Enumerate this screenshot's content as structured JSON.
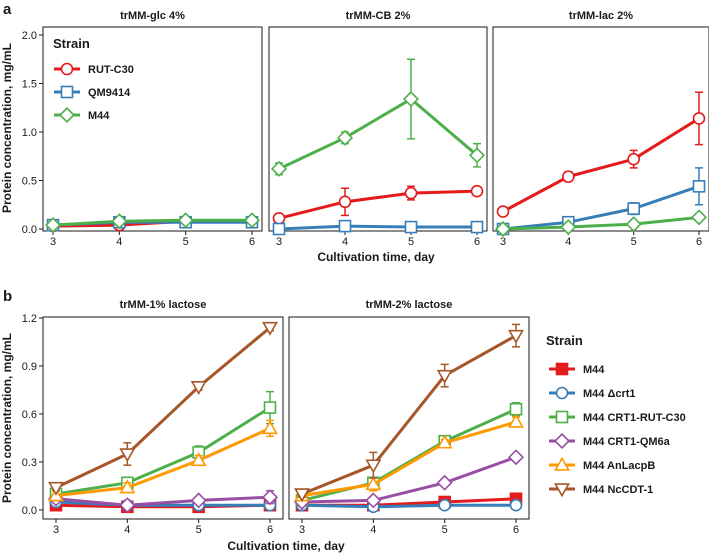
{
  "figure_labels": {
    "a": "a",
    "b": "b"
  },
  "colors": {
    "RUT-C30": "#e41a1c",
    "QM9414": "#377eb8",
    "M44_a": "#4daf4a",
    "M44": "#e41a1c",
    "M44 Δcrt1": "#377eb8",
    "M44 CRT1-RUT-C30": "#4daf4a",
    "M44 CRT1-QM6a": "#984ea3",
    "M44 AnLacpB": "#ff9900",
    "M44 NcCDT-1": "#a65628"
  },
  "chart_data": [
    {
      "id": "a",
      "type": "line",
      "ylabel": "Protein concentration, mg/mL",
      "xlabel": "Cultivation time, day",
      "x": [
        3,
        4,
        5,
        6
      ],
      "xlim": [
        3,
        6
      ],
      "ylim": [
        0,
        2.0
      ],
      "yticks": [
        0.0,
        0.5,
        1.0,
        1.5,
        2.0
      ],
      "ytick_labels": [
        "0.0",
        "0.5",
        "1.0",
        "1.5",
        "2.0"
      ],
      "xtick_labels": [
        "3",
        "4",
        "5",
        "6"
      ],
      "legend": {
        "title": "Strain",
        "placement": "inside-top-left-first-panel",
        "entries": [
          "RUT-C30",
          "QM9414",
          "M44"
        ]
      },
      "panels": [
        {
          "title": "trMM-glc 4%",
          "series": [
            {
              "name": "RUT-C30",
              "values": [
                0.03,
                0.04,
                0.08,
                0.08
              ],
              "errors": [
                0.01,
                0.02,
                0.01,
                0.01
              ]
            },
            {
              "name": "QM9414",
              "values": [
                0.04,
                0.07,
                0.07,
                0.07
              ],
              "errors": [
                0.01,
                0.04,
                0.01,
                0.02
              ]
            },
            {
              "name": "M44",
              "values": [
                0.04,
                0.08,
                0.09,
                0.09
              ],
              "errors": [
                0.01,
                0.02,
                0.01,
                0.01
              ]
            }
          ]
        },
        {
          "title": "trMM-CB 2%",
          "series": [
            {
              "name": "RUT-C30",
              "values": [
                0.11,
                0.28,
                0.37,
                0.39
              ],
              "errors": [
                0.02,
                0.14,
                0.07,
                0.02
              ]
            },
            {
              "name": "QM9414",
              "values": [
                0.0,
                0.03,
                0.02,
                0.02
              ],
              "errors": [
                0.01,
                0.01,
                0.01,
                0.01
              ]
            },
            {
              "name": "M44",
              "values": [
                0.62,
                0.94,
                1.34,
                0.76
              ],
              "errors": [
                0.06,
                0.06,
                0.41,
                0.12
              ]
            }
          ]
        },
        {
          "title": "trMM-lac 2%",
          "series": [
            {
              "name": "RUT-C30",
              "values": [
                0.18,
                0.54,
                0.72,
                1.14
              ],
              "errors": [
                0.03,
                0.05,
                0.09,
                0.27
              ]
            },
            {
              "name": "QM9414",
              "values": [
                0.0,
                0.07,
                0.21,
                0.44
              ],
              "errors": [
                0.01,
                0.02,
                0.06,
                0.19
              ]
            },
            {
              "name": "M44",
              "values": [
                0.0,
                0.02,
                0.05,
                0.12
              ],
              "errors": [
                0.01,
                0.01,
                0.02,
                0.03
              ]
            }
          ]
        }
      ]
    },
    {
      "id": "b",
      "type": "line",
      "ylabel": "Protein concentration, mg/mL",
      "xlabel": "Cultivation time, day",
      "x": [
        3,
        4,
        5,
        6
      ],
      "xlim": [
        3,
        6
      ],
      "ylim": [
        0,
        1.2
      ],
      "yticks": [
        0.0,
        0.3,
        0.6,
        0.9,
        1.2
      ],
      "ytick_labels": [
        "0.0",
        "0.3",
        "0.6",
        "0.9",
        "1.2"
      ],
      "xtick_labels": [
        "3",
        "4",
        "5",
        "6"
      ],
      "legend": {
        "title": "Strain",
        "placement": "right",
        "entries": [
          "M44",
          "M44 Δcrt1",
          "M44 CRT1-RUT-C30",
          "M44 CRT1-QM6a",
          "M44 AnLacpB",
          "M44 NcCDT-1"
        ]
      },
      "panels": [
        {
          "title": "trMM-1% lactose",
          "series": [
            {
              "name": "M44",
              "values": [
                0.03,
                0.02,
                0.02,
                0.03
              ],
              "errors": [
                0.01,
                0.01,
                0.01,
                0.01
              ]
            },
            {
              "name": "M44 Δcrt1",
              "values": [
                0.05,
                0.03,
                0.03,
                0.03
              ],
              "errors": [
                0.01,
                0.01,
                0.01,
                0.01
              ]
            },
            {
              "name": "M44 CRT1-RUT-C30",
              "values": [
                0.1,
                0.17,
                0.36,
                0.64
              ],
              "errors": [
                0.01,
                0.03,
                0.04,
                0.1
              ]
            },
            {
              "name": "M44 CRT1-QM6a",
              "values": [
                0.07,
                0.03,
                0.06,
                0.08
              ],
              "errors": [
                0.01,
                0.01,
                0.02,
                0.04
              ]
            },
            {
              "name": "M44 AnLacpB",
              "values": [
                0.09,
                0.14,
                0.31,
                0.51
              ],
              "errors": [
                0.01,
                0.03,
                0.03,
                0.05
              ]
            },
            {
              "name": "M44 NcCDT-1",
              "values": [
                0.14,
                0.35,
                0.77,
                1.14
              ],
              "errors": [
                0.02,
                0.07,
                0.02,
                0.02
              ]
            }
          ]
        },
        {
          "title": "trMM-2% lactose",
          "series": [
            {
              "name": "M44",
              "values": [
                0.03,
                0.03,
                0.05,
                0.07
              ],
              "errors": [
                0.01,
                0.01,
                0.02,
                0.03
              ]
            },
            {
              "name": "M44 Δcrt1",
              "values": [
                0.03,
                0.02,
                0.03,
                0.03
              ],
              "errors": [
                0.01,
                0.01,
                0.01,
                0.01
              ]
            },
            {
              "name": "M44 CRT1-RUT-C30",
              "values": [
                0.06,
                0.17,
                0.43,
                0.63
              ],
              "errors": [
                0.01,
                0.03,
                0.02,
                0.04
              ]
            },
            {
              "name": "M44 CRT1-QM6a",
              "values": [
                0.05,
                0.06,
                0.17,
                0.33
              ],
              "errors": [
                0.01,
                0.01,
                0.01,
                0.02
              ]
            },
            {
              "name": "M44 AnLacpB",
              "values": [
                0.09,
                0.16,
                0.42,
                0.55
              ],
              "errors": [
                0.01,
                0.04,
                0.02,
                0.03
              ]
            },
            {
              "name": "M44 NcCDT-1",
              "values": [
                0.1,
                0.28,
                0.84,
                1.09
              ],
              "errors": [
                0.02,
                0.08,
                0.07,
                0.07
              ]
            }
          ]
        }
      ]
    }
  ]
}
